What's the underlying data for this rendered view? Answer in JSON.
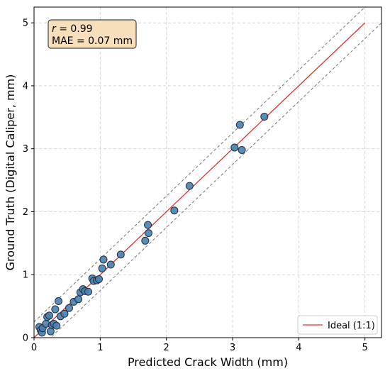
{
  "chart_data": {
    "type": "scatter",
    "xlabel": "Predicted Crack Width (mm)",
    "ylabel": "Ground Truth (Digital Caliper, mm)",
    "xlim": [
      0,
      5.25
    ],
    "ylim": [
      0,
      5.25
    ],
    "xticks": [
      0,
      1,
      2,
      3,
      4,
      5
    ],
    "yticks": [
      0,
      1,
      2,
      3,
      4,
      5
    ],
    "grid": true,
    "annotation": {
      "r_symbol": "r",
      "r_value": " = 0.99",
      "mae": "MAE = 0.07 mm",
      "position": "top-left"
    },
    "legend": {
      "position": "bottom-right",
      "entries": [
        "Ideal (1:1)"
      ]
    },
    "ideal_line": {
      "name": "Ideal (1:1)",
      "x": [
        0,
        5
      ],
      "y": [
        0,
        5
      ],
      "color": "#e8302a"
    },
    "tolerance_band": {
      "offset": 0.25,
      "color": "#777777"
    },
    "point_color": "#4a7fb0",
    "points": [
      [
        0.08,
        0.17
      ],
      [
        0.1,
        0.12
      ],
      [
        0.12,
        0.08
      ],
      [
        0.13,
        0.15
      ],
      [
        0.18,
        0.22
      ],
      [
        0.2,
        0.33
      ],
      [
        0.23,
        0.35
      ],
      [
        0.25,
        0.1
      ],
      [
        0.27,
        0.2
      ],
      [
        0.3,
        0.22
      ],
      [
        0.32,
        0.45
      ],
      [
        0.34,
        0.19
      ],
      [
        0.37,
        0.58
      ],
      [
        0.4,
        0.34
      ],
      [
        0.46,
        0.38
      ],
      [
        0.53,
        0.47
      ],
      [
        0.6,
        0.57
      ],
      [
        0.67,
        0.61
      ],
      [
        0.7,
        0.72
      ],
      [
        0.74,
        0.77
      ],
      [
        0.77,
        0.74
      ],
      [
        0.82,
        0.73
      ],
      [
        0.88,
        0.94
      ],
      [
        0.9,
        0.9
      ],
      [
        0.95,
        0.91
      ],
      [
        0.98,
        0.93
      ],
      [
        1.03,
        1.1
      ],
      [
        1.05,
        1.24
      ],
      [
        1.16,
        1.16
      ],
      [
        1.31,
        1.32
      ],
      [
        1.68,
        1.54
      ],
      [
        1.72,
        1.79
      ],
      [
        1.73,
        1.66
      ],
      [
        2.12,
        2.02
      ],
      [
        2.35,
        2.41
      ],
      [
        3.03,
        3.02
      ],
      [
        3.11,
        3.38
      ],
      [
        3.14,
        2.98
      ],
      [
        3.48,
        3.51
      ]
    ]
  }
}
